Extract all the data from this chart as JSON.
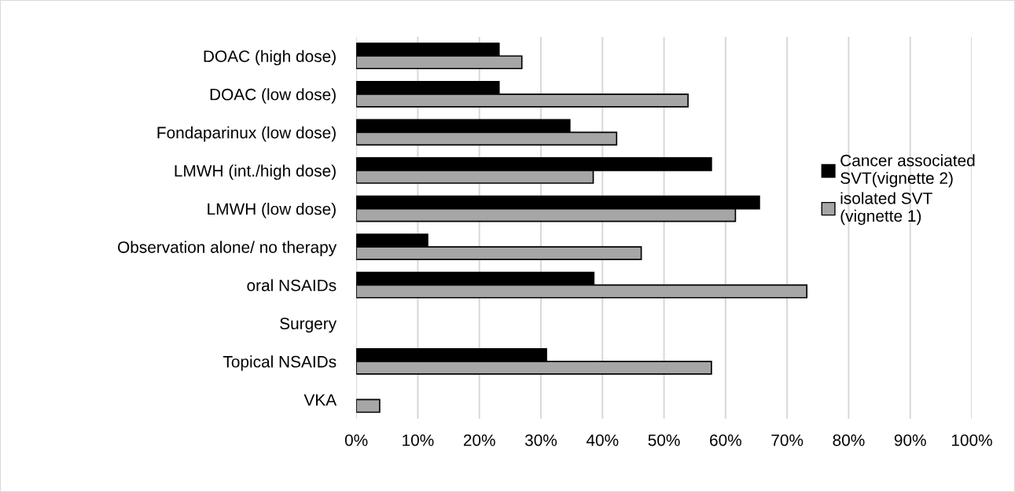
{
  "chart_data": {
    "type": "bar",
    "orientation": "horizontal",
    "categories": [
      "DOAC (high dose)",
      "DOAC (low dose)",
      "Fondaparinux (low dose)",
      "LMWH (int./high dose)",
      "LMWH (low dose)",
      "Observation alone/ no therapy",
      "oral NSAIDs",
      "Surgery",
      "Topical NSAIDs",
      "VKA"
    ],
    "series": [
      {
        "name": "Cancer associated\nSVT(vignette 2)",
        "color": "#000000",
        "values": [
          23.2,
          23.2,
          34.7,
          57.7,
          65.5,
          11.6,
          38.6,
          null,
          30.9,
          null
        ]
      },
      {
        "name": "isolated SVT\n(vignette 1)",
        "color": "#a6a6a6",
        "values": [
          26.9,
          53.9,
          42.3,
          38.5,
          61.6,
          46.3,
          73.2,
          null,
          57.7,
          3.8
        ]
      }
    ],
    "xlim": [
      0,
      100
    ],
    "xticks": [
      {
        "value": 0,
        "label": "0%"
      },
      {
        "value": 10,
        "label": "10%"
      },
      {
        "value": 20,
        "label": "20%"
      },
      {
        "value": 30,
        "label": "30%"
      },
      {
        "value": 40,
        "label": "40%"
      },
      {
        "value": 50,
        "label": "50%"
      },
      {
        "value": 60,
        "label": "60%"
      },
      {
        "value": 70,
        "label": "70%"
      },
      {
        "value": 80,
        "label": "80%"
      },
      {
        "value": 90,
        "label": "90%"
      },
      {
        "value": 100,
        "label": "100%"
      }
    ],
    "grid": "x",
    "legend": "right"
  }
}
